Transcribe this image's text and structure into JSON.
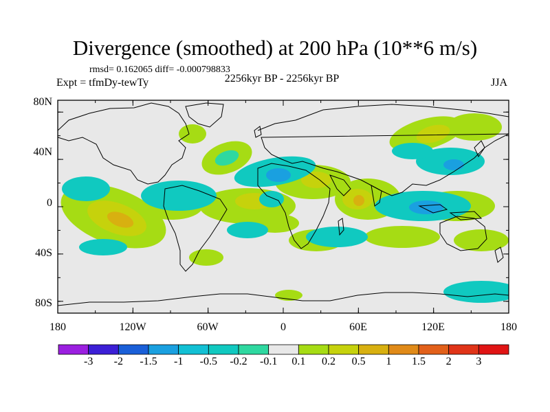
{
  "title": "Divergence (smoothed) at 200 hPa (10**6 m/s)",
  "stats": "rmsd= 0.162065 diff= -0.000798833",
  "subtitle": "2256kyr BP - 2256kyr BP",
  "expt": "Expt = tfmDy-tewTy",
  "season": "JJA",
  "map": {
    "lat_labels": [
      "80N",
      "40N",
      "0",
      "40S",
      "80S"
    ],
    "lon_labels": [
      "180",
      "120W",
      "60W",
      "0",
      "60E",
      "120E",
      "180"
    ],
    "lon_range": [
      -180,
      180
    ],
    "lat_range": [
      -90,
      90
    ],
    "background": "#e8e8e8"
  },
  "colorbar": {
    "labels": [
      "-3",
      "-2",
      "-1.5",
      "-1",
      "-0.5",
      "-0.2",
      "-0.1",
      "0.1",
      "0.2",
      "0.5",
      "1",
      "1.5",
      "2",
      "3"
    ],
    "colors": [
      "#9b1fe0",
      "#3c1fd6",
      "#1a5fd8",
      "#1aa0e0",
      "#12c0d4",
      "#10c9c0",
      "#2ed8a0",
      "#e8e8e8",
      "#a6dc14",
      "#c6d20c",
      "#d8b010",
      "#e08a18",
      "#e2601a",
      "#e03418",
      "#e01414"
    ]
  },
  "field": {
    "levels": {
      "pos_low": "#a6dc14",
      "pos_mid": "#c6d20c",
      "pos_high": "#d8b010",
      "neg_low": "#2ed8a0",
      "neg_mid": "#10c9c0",
      "neg_high": "#1aa0e0"
    }
  }
}
